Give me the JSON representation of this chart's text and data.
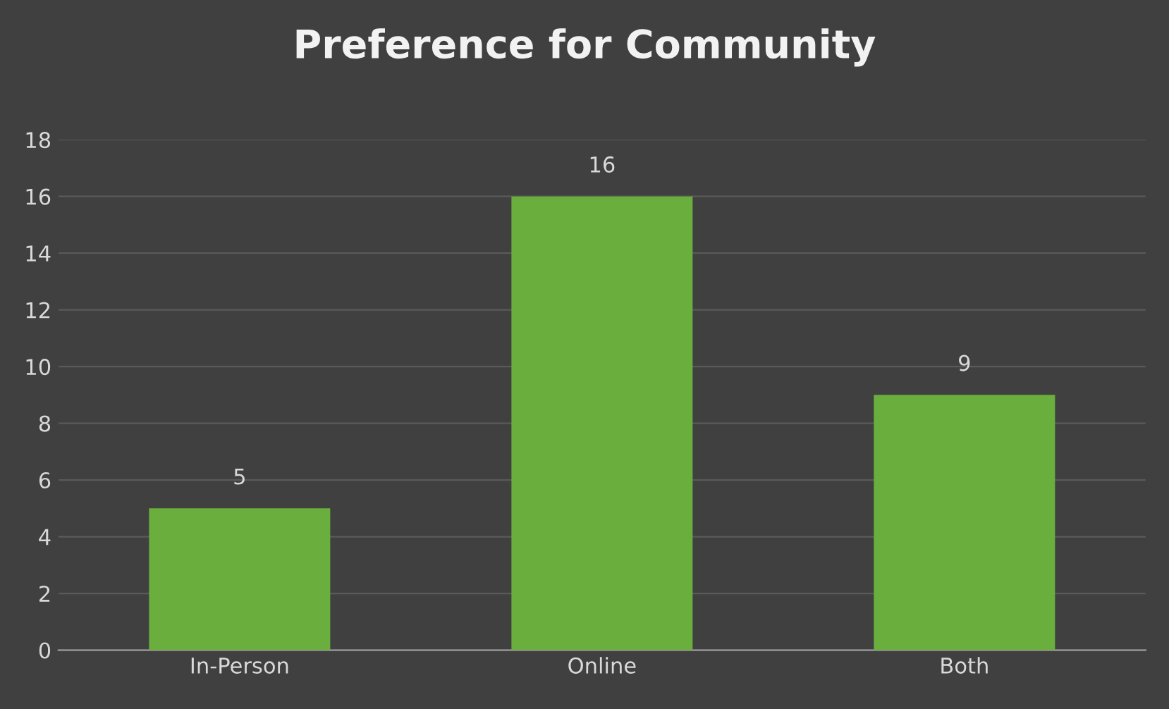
{
  "chart_data": {
    "type": "bar",
    "title": "Preference for Community",
    "categories": [
      "In-Person",
      "Online",
      "Both"
    ],
    "values": [
      5,
      16,
      9
    ],
    "color": "#6aaf3d",
    "ylim": [
      0,
      18
    ],
    "yticks": [
      0,
      2,
      4,
      6,
      8,
      10,
      12,
      14,
      16,
      18
    ],
    "grid": "y",
    "data_labels": true,
    "legend": false
  }
}
